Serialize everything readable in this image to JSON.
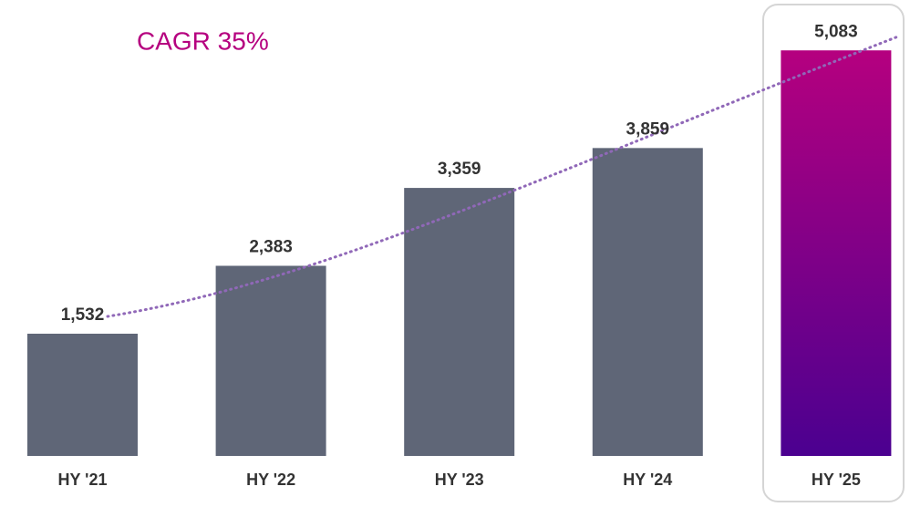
{
  "chart_data": {
    "type": "bar",
    "subtitle": "CAGR 35%",
    "categories": [
      "HY '21",
      "HY '22",
      "HY '23",
      "HY '24",
      "HY '25"
    ],
    "values": [
      1532,
      2383,
      3359,
      3859,
      5083
    ],
    "value_labels": [
      "1,532",
      "2,383",
      "3,359",
      "3,859",
      "5,083"
    ],
    "color": "#5f6677",
    "highlight_index": 4,
    "highlight_gradient": [
      "#b5007f",
      "#4b0090"
    ],
    "ylim": [
      0,
      5500
    ]
  }
}
